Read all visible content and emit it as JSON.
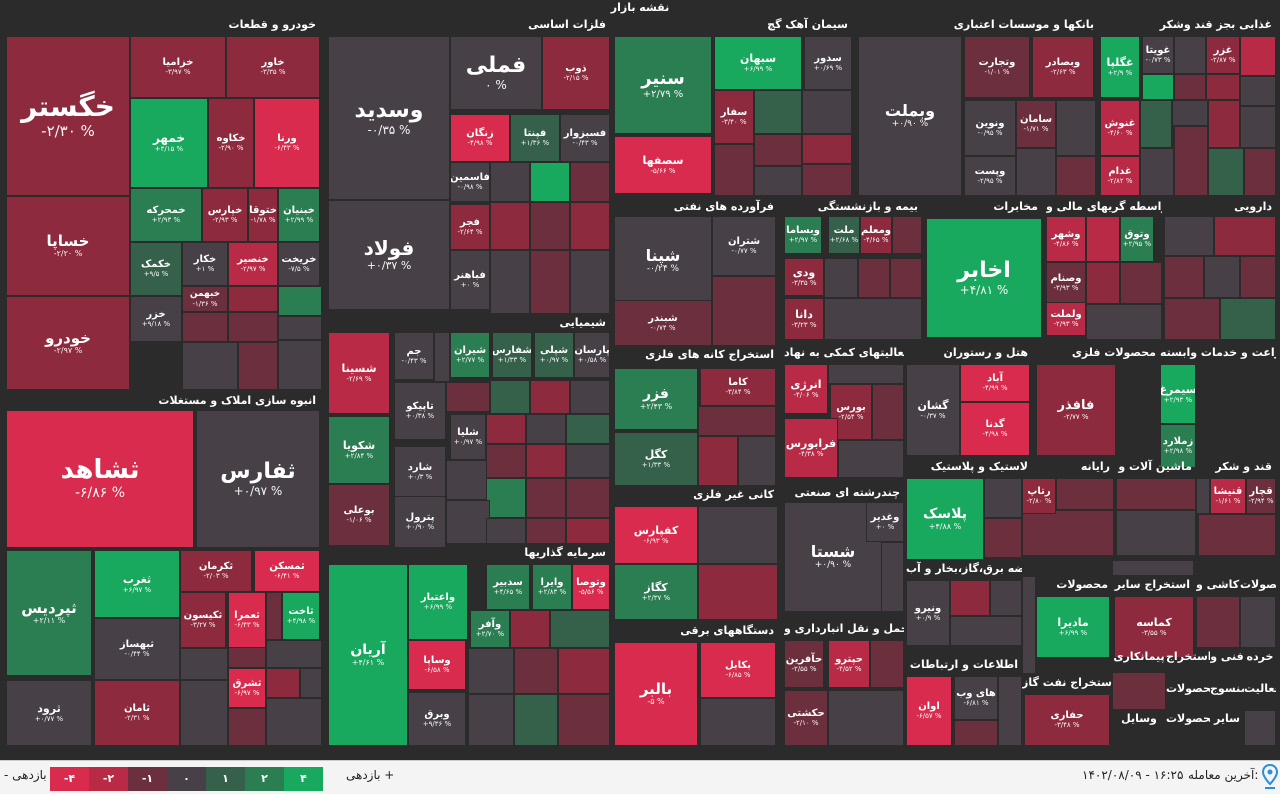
{
  "map_title": "نقشه بازار",
  "colors": {
    "n4": "#d92b4d",
    "n3": "#b82a45",
    "n2": "#8e2a3e",
    "n1": "#6b2f3e",
    "z": "#474047",
    "p1": "#35604a",
    "p2": "#2b7d52",
    "p4": "#18a85e"
  },
  "sectors": [
    {
      "title": "خودرو و قطعات",
      "tiles": [
        {
          "name": "خگستر",
          "value": "-۲/۳۰ %",
          "tone": "n2"
        },
        {
          "name": "خساپا",
          "value": "-۲/۲۰ %",
          "tone": "n2"
        },
        {
          "name": "خودرو",
          "value": "-۲/۹۷ %",
          "tone": "n2"
        },
        {
          "name": "خزامیا",
          "value": "-۳/۹۷ %",
          "tone": "n2"
        },
        {
          "name": "خاور",
          "value": "-۳/۳۵ %",
          "tone": "n2"
        },
        {
          "name": "خمهر",
          "value": "+۴/۱۵ %",
          "tone": "p4"
        },
        {
          "name": "خکاوه",
          "value": "-۲/۹۰ %",
          "tone": "n2"
        },
        {
          "name": "ورنا",
          "value": "-۶/۴۳ %",
          "tone": "n4"
        },
        {
          "name": "خمحرکه",
          "value": "+۲/۹۳ %",
          "tone": "p2"
        },
        {
          "name": "خپارس",
          "value": "-۲/۹۳ %",
          "tone": "n2"
        },
        {
          "name": "ختوقا",
          "value": "-۱/۷۸ %",
          "tone": "n2"
        },
        {
          "name": "خبنیان",
          "value": "+۲/۹۹ %",
          "tone": "p2"
        },
        {
          "name": "خکمک",
          "value": "+۹/۵ %",
          "tone": "p1"
        },
        {
          "name": "خکار",
          "value": "+۱ %",
          "tone": "z"
        },
        {
          "name": "خنصیر",
          "value": "-۲/۹۷ %",
          "tone": "n3"
        },
        {
          "name": "خریخت",
          "value": "-۷/۵ %",
          "tone": "z"
        },
        {
          "name": "خبهمن",
          "value": "-۱/۳۶ %",
          "tone": "n1"
        },
        {
          "name": "خزر",
          "value": "+۹/۱۸ %",
          "tone": "z"
        }
      ]
    },
    {
      "title": "انبوه سازی املاک و مستغلات",
      "tiles": [
        {
          "name": "ثشاهد",
          "value": "-۶/۸۶ %",
          "tone": "n4"
        },
        {
          "name": "ثفارس",
          "value": "+۰/۹۷ %",
          "tone": "z"
        },
        {
          "name": "ثپردیس",
          "value": "+۲/۱۱ %",
          "tone": "p2"
        },
        {
          "name": "ثغرب",
          "value": "+۶/۹۷ %",
          "tone": "p4"
        },
        {
          "name": "ثکرمان",
          "value": "-۲/۰۳ %",
          "tone": "n2"
        },
        {
          "name": "ثمسکن",
          "value": "-۶/۴۱ %",
          "tone": "n4"
        },
        {
          "name": "ثبهساز",
          "value": "-۰/۴۴ %",
          "tone": "z"
        },
        {
          "name": "ثکیسون",
          "value": "-۳/۲۷ %",
          "tone": "n2"
        },
        {
          "name": "ثعمرا",
          "value": "-۶/۴۳ %",
          "tone": "n4"
        },
        {
          "name": "ثاخت",
          "value": "+۴/۹۸ %",
          "tone": "p4"
        },
        {
          "name": "ثرود",
          "value": "+۰/۷۷ %",
          "tone": "z"
        },
        {
          "name": "ثامان",
          "value": "-۲/۳۱ %",
          "tone": "n2"
        },
        {
          "name": "ثشرق",
          "value": "-۶/۹۷ %",
          "tone": "n4"
        }
      ]
    },
    {
      "title": "فلزات اساسی",
      "tiles": [
        {
          "name": "وسدید",
          "value": "-۰/۳۵ %",
          "tone": "z"
        },
        {
          "name": "فملی",
          "value": "۰ %",
          "tone": "z"
        },
        {
          "name": "ذوب",
          "value": "-۲/۱۵ %",
          "tone": "n2"
        },
        {
          "name": "فولاد",
          "value": "+۰/۳۷ %",
          "tone": "z"
        },
        {
          "name": "زنگان",
          "value": "-۴/۹۸ %",
          "tone": "n4"
        },
        {
          "name": "فپنتا",
          "value": "+۱/۳۶ %",
          "tone": "p1"
        },
        {
          "name": "فسبزوار",
          "value": "-۰/۴۳ %",
          "tone": "z"
        },
        {
          "name": "فاسمین",
          "value": "-۰/۹۸ %",
          "tone": "z"
        },
        {
          "name": "فجر",
          "value": "-۲/۶۴ %",
          "tone": "n2"
        },
        {
          "name": "فباهنر",
          "value": "+۰ %",
          "tone": "z"
        }
      ]
    },
    {
      "title": "شیمیایی",
      "tiles": [
        {
          "name": "شسینا",
          "value": "-۲/۶۹ %",
          "tone": "n3"
        },
        {
          "name": "جم",
          "value": "-۰/۴۳ %",
          "tone": "z"
        },
        {
          "name": "شیران",
          "value": "+۲/۷۷ %",
          "tone": "p2"
        },
        {
          "name": "شفارس",
          "value": "+۱/۳۳ %",
          "tone": "p1"
        },
        {
          "name": "شپلی",
          "value": "+۰/۹۷ %",
          "tone": "p1"
        },
        {
          "name": "پارسان",
          "value": "+۰/۵۸ %",
          "tone": "z"
        },
        {
          "name": "تاپیکو",
          "value": "+۰/۳۸ %",
          "tone": "z"
        },
        {
          "name": "شکویا",
          "value": "+۲/۸۴ %",
          "tone": "p2"
        },
        {
          "name": "شلیا",
          "value": "+۰/۹۷ %",
          "tone": "z"
        },
        {
          "name": "شارد",
          "value": "+۰/۳ %",
          "tone": "z"
        },
        {
          "name": "بوعلی",
          "value": "-۱/۰۶ %",
          "tone": "n1"
        },
        {
          "name": "پترول",
          "value": "+۰/۹۰ %",
          "tone": "z"
        }
      ]
    },
    {
      "title": "سرمایه گذاریها",
      "tiles": [
        {
          "name": "آریان",
          "value": "+۴/۶۱ %",
          "tone": "p4"
        },
        {
          "name": "واعتبار",
          "value": "+۶/۹۹ %",
          "tone": "p4"
        },
        {
          "name": "سدبیر",
          "value": "+۴/۶۵ %",
          "tone": "p2"
        },
        {
          "name": "وایرا",
          "value": "+۲/۸۳ %",
          "tone": "p2"
        },
        {
          "name": "وتوصا",
          "value": "-۵/۵۶ %",
          "tone": "n4"
        },
        {
          "name": "وآفر",
          "value": "+۲/۷۰ %",
          "tone": "p2"
        },
        {
          "name": "وساپا",
          "value": "-۶/۵۸ %",
          "tone": "n4"
        },
        {
          "name": "وبرق",
          "value": "+۹/۳۶ %",
          "tone": "z"
        }
      ]
    },
    {
      "title": "سیمان آهک گچ",
      "tiles": [
        {
          "name": "سنیر",
          "value": "+۲/۷۹ %",
          "tone": "p2"
        },
        {
          "name": "سبهان",
          "value": "+۶/۹۹ %",
          "tone": "p4"
        },
        {
          "name": "سدور",
          "value": "+۰/۶۹ %",
          "tone": "z"
        },
        {
          "name": "سفار",
          "value": "-۳/۴۰ %",
          "tone": "n2"
        },
        {
          "name": "سصفها",
          "value": "-۵/۶۶ %",
          "tone": "n4"
        }
      ]
    },
    {
      "title": "فرآورده های نفتی",
      "tiles": [
        {
          "name": "شپنا",
          "value": "-۰/۲۴ %",
          "tone": "z"
        },
        {
          "name": "شتران",
          "value": "-۰/۷۷ %",
          "tone": "z"
        },
        {
          "name": "شبندر",
          "value": "-۰/۷۴ %",
          "tone": "n1"
        }
      ]
    },
    {
      "title": "استخراج کانه های فلزی",
      "tiles": [
        {
          "name": "فزر",
          "value": "+۲/۴۳ %",
          "tone": "p2"
        },
        {
          "name": "کاما",
          "value": "-۳/۸۴ %",
          "tone": "n2"
        },
        {
          "name": "کگل",
          "value": "+۱/۳۳ %",
          "tone": "p1"
        }
      ]
    },
    {
      "title": "کانی غیر فلزی",
      "tiles": [
        {
          "name": "کفپارس",
          "value": "-۶/۹۳ %",
          "tone": "n4"
        },
        {
          "name": "کگاز",
          "value": "+۲/۳۷ %",
          "tone": "p2"
        }
      ]
    },
    {
      "title": "دستگاههای برقی",
      "tiles": [
        {
          "name": "بالبر",
          "value": "-۵ %",
          "tone": "n4"
        },
        {
          "name": "بکابل",
          "value": "-۶/۸۵ %",
          "tone": "n4"
        }
      ]
    },
    {
      "title": "بانکها و موسسات اعتباری",
      "tiles": [
        {
          "name": "وبملت",
          "value": "+۰/۹۰ %",
          "tone": "z"
        },
        {
          "name": "وتجارت",
          "value": "-۱/۰۱ %",
          "tone": "n1"
        },
        {
          "name": "وبصادر",
          "value": "-۲/۶۳ %",
          "tone": "n2"
        },
        {
          "name": "ونوین",
          "value": "-۰/۹۵ %",
          "tone": "z"
        },
        {
          "name": "سامان",
          "value": "-۱/۷۱ %",
          "tone": "n1"
        },
        {
          "name": "وپست",
          "value": "-۲/۹۵ %",
          "tone": "z"
        }
      ]
    },
    {
      "title": "غذایی بجز قند وشکر",
      "tiles": [
        {
          "name": "غگلپا",
          "value": "+۲/۹ %",
          "tone": "p4"
        },
        {
          "name": "غویتا",
          "value": "-۰/۷۳ %",
          "tone": "z"
        },
        {
          "name": "غزر",
          "value": "-۲/۸۷ %",
          "tone": "n2"
        },
        {
          "name": "غنوش",
          "value": "-۴/۶۰ %",
          "tone": "n3"
        },
        {
          "name": "غدام",
          "value": "-۲/۸۲ %",
          "tone": "n3"
        }
      ]
    },
    {
      "title": "بیمه و بازنشستگی",
      "tiles": [
        {
          "name": "وبساما",
          "value": "+۲/۹۷ %",
          "tone": "p2"
        },
        {
          "name": "ملت",
          "value": "+۲/۶۸ %",
          "tone": "p1"
        },
        {
          "name": "ومعلم",
          "value": "-۴/۶۵ %",
          "tone": "n2"
        },
        {
          "name": "ودی",
          "value": "-۳/۳۵ %",
          "tone": "n2"
        },
        {
          "name": "دانا",
          "value": "-۳/۲۳ %",
          "tone": "n2"
        }
      ]
    },
    {
      "title": "مخابرات",
      "tiles": [
        {
          "name": "اخابر",
          "value": "+۴/۸۱ %",
          "tone": "p4"
        }
      ]
    },
    {
      "title": "واسطه گریهای مالی و",
      "tiles": [
        {
          "name": "وشهر",
          "value": "-۴/۸۶ %",
          "tone": "n3"
        },
        {
          "name": "وتوق",
          "value": "+۲/۹۵ %",
          "tone": "p2"
        },
        {
          "name": "وصنام",
          "value": "-۳/۹۳ %",
          "tone": "n1"
        },
        {
          "name": "ولملت",
          "value": "-۲/۹۳ %",
          "tone": "n3"
        }
      ]
    },
    {
      "title": "دارویی",
      "tiles": []
    },
    {
      "title": "فعالیتهای کمکی به نهاد",
      "tiles": [
        {
          "name": "انرژی",
          "value": "-۴/۰۶ %",
          "tone": "n3"
        },
        {
          "name": "بورس",
          "value": "-۲/۵۴ %",
          "tone": "n2"
        },
        {
          "name": "فرابورس",
          "value": "-۴/۳۸ %",
          "tone": "n3"
        }
      ]
    },
    {
      "title": "هتل و رستوران",
      "tiles": [
        {
          "name": "گشان",
          "value": "-۰/۳۷ %",
          "tone": "z"
        },
        {
          "name": "آباد",
          "value": "-۴/۹۹ %",
          "tone": "n4"
        },
        {
          "name": "گدنا",
          "value": "-۴/۹۸ %",
          "tone": "n4"
        }
      ]
    },
    {
      "title": "محصولات فلزی",
      "tiles": [
        {
          "name": "فافذر",
          "value": "-۲/۷۷ %",
          "tone": "n2"
        }
      ]
    },
    {
      "title": "زراعت و خدمات وابسته",
      "tiles": [
        {
          "name": "سیمرغ",
          "value": "+۲/۹۳ %",
          "tone": "p4"
        },
        {
          "name": "زملارد",
          "value": "+۲/۹۸ %",
          "tone": "p2"
        }
      ]
    },
    {
      "title": "لاستیک و پلاستیک",
      "tiles": [
        {
          "name": "پلاسک",
          "value": "+۴/۸۸ %",
          "tone": "p4"
        }
      ]
    },
    {
      "title": "رایانه",
      "tiles": [
        {
          "name": "رتاپ",
          "value": "-۲/۸۰ %",
          "tone": "n2"
        }
      ]
    },
    {
      "title": "ماشین آلات و",
      "tiles": []
    },
    {
      "title": "قند و شکر",
      "tiles": [
        {
          "name": "قنیشا",
          "value": "-۱/۶۱ %",
          "tone": "n3"
        },
        {
          "name": "قچار",
          "value": "-۲/۹۴ %",
          "tone": "n1"
        }
      ]
    },
    {
      "title": "چندرشته ای صنعتی",
      "tiles": [
        {
          "name": "شستا",
          "value": "+۰/۹۰ %",
          "tone": "z"
        },
        {
          "name": "وغدیر",
          "value": "+۰ %",
          "tone": "z"
        }
      ]
    },
    {
      "title": "عرضه برق،گاز،بخار و آب",
      "tiles": [
        {
          "name": "ونیرو",
          "value": "+۰/۹ %",
          "tone": "z"
        }
      ]
    },
    {
      "title": "محصولات",
      "tiles": [
        {
          "name": "مادیرا",
          "value": "+۶/۹۹ %",
          "tone": "p4"
        }
      ]
    },
    {
      "title": "استخراج سایر",
      "tiles": [
        {
          "name": "کماسه",
          "value": "-۳/۵۵ %",
          "tone": "n2"
        }
      ]
    },
    {
      "title": "کاشی و",
      "tiles": []
    },
    {
      "title": "محصولات",
      "tiles": []
    },
    {
      "title": "حمل و نقل انبارداری و",
      "tiles": [
        {
          "name": "حآفرین",
          "value": "-۲/۵۵ %",
          "tone": "n1"
        },
        {
          "name": "حپترو",
          "value": "-۴/۵۲ %",
          "tone": "n3"
        },
        {
          "name": "حکشتی",
          "value": "-۲/۱۰ %",
          "tone": "n1"
        }
      ]
    },
    {
      "title": "اطلاعات و ارتباطات",
      "tiles": [
        {
          "name": "اوان",
          "value": "-۶/۵۷ %",
          "tone": "n4"
        },
        {
          "name": "های وب",
          "value": "-۶/۸۱ %",
          "tone": "z"
        }
      ]
    },
    {
      "title": "استخراج نفت گاز",
      "tiles": [
        {
          "name": "حفاری",
          "value": "-۳/۴۸ %",
          "tone": "n2"
        }
      ]
    }
  ],
  "misc_labels": [
    "پیمانکاری",
    "استخراج",
    "محصولات",
    "فنی و",
    "خرده",
    "فعالیت",
    "منسوج",
    "سایر",
    "محصولات",
    "وسایل"
  ],
  "legend": {
    "left_label": "- بازدهی",
    "right_label": "بازدهی +",
    "steps": [
      "-۴",
      "-۲",
      "-۱",
      "۰",
      "۱",
      "۲",
      "۴"
    ],
    "step_tones": [
      "n4",
      "n3",
      "n1",
      "z",
      "p1",
      "p2",
      "p4"
    ]
  },
  "footer": {
    "last_trade_label": "آخرین معامله:",
    "last_trade_value": "۱۴۰۲/۰۸/۰۹ - ۱۶:۲۵"
  }
}
